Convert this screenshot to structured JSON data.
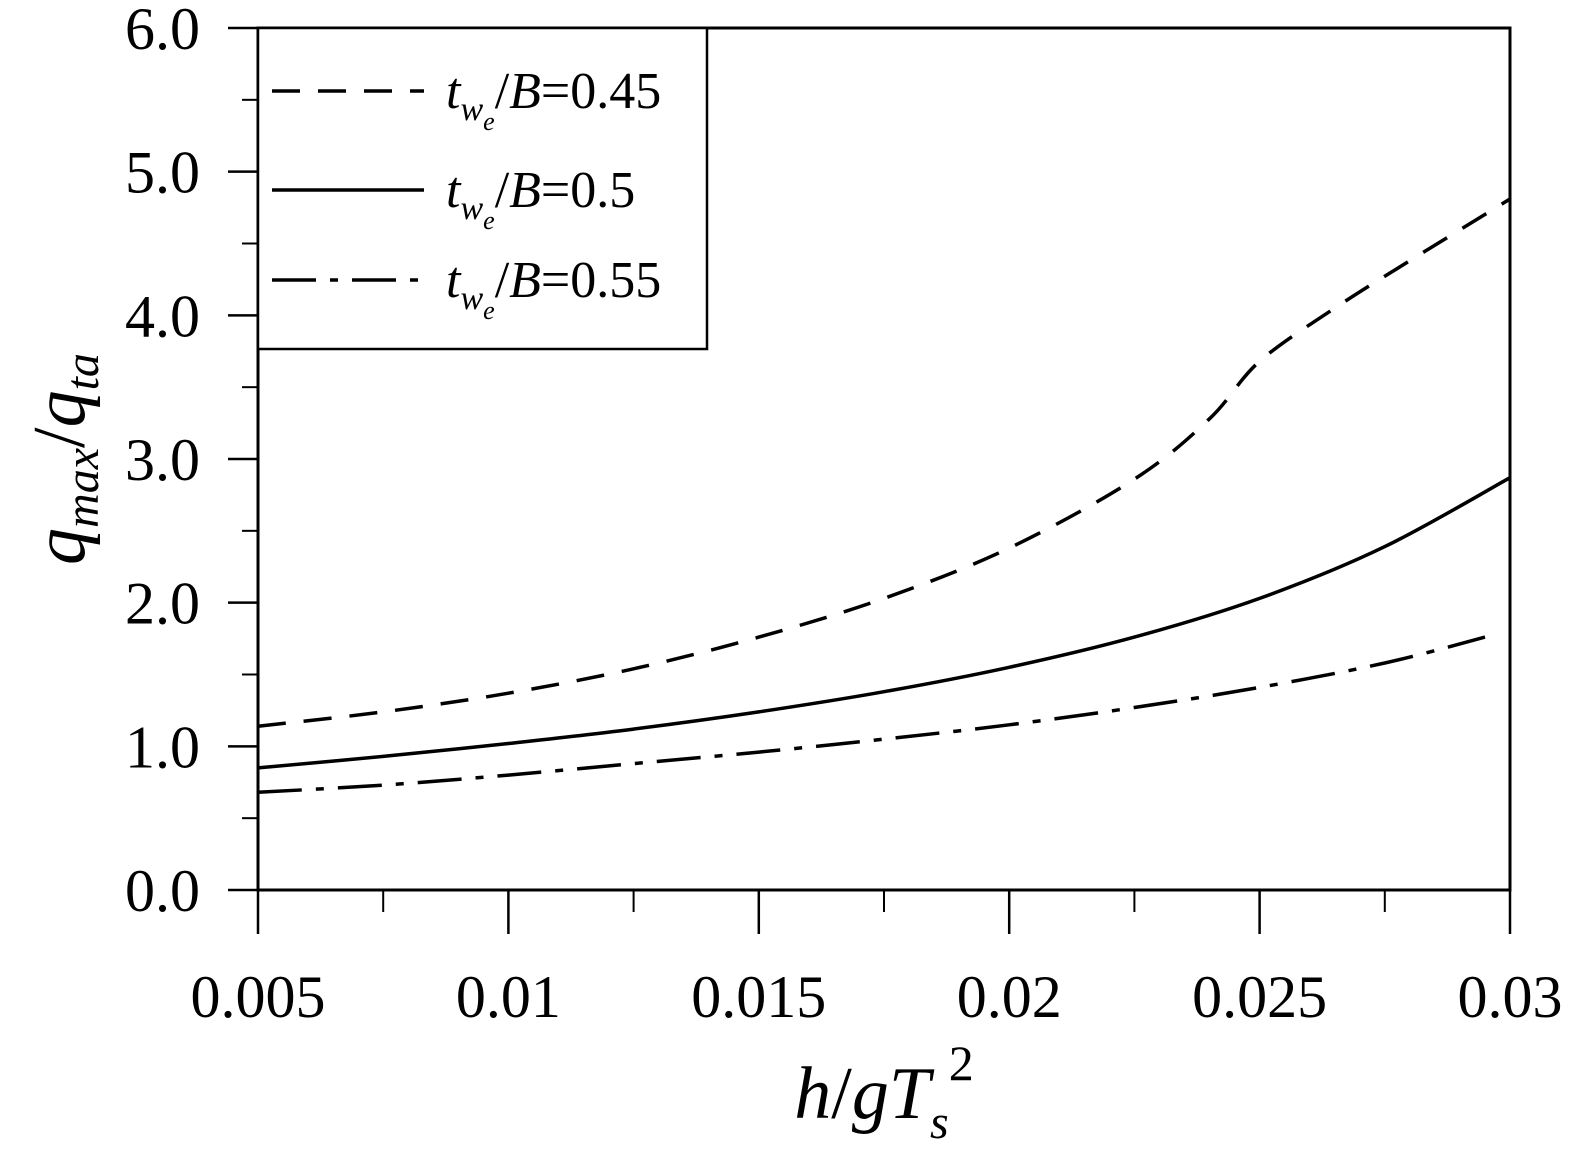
{
  "chart_data": {
    "type": "line",
    "title": "",
    "xlabel": "h/gTs²",
    "ylabel": "qmax/qta",
    "xlim": [
      0.005,
      0.03
    ],
    "ylim": [
      0.0,
      6.0
    ],
    "x_ticks": [
      0.005,
      0.01,
      0.015,
      0.02,
      0.025,
      0.03
    ],
    "x_tick_labels": [
      "0.005",
      "0.01",
      "0.015",
      "0.02",
      "0.025",
      "0.03"
    ],
    "x_minor_ticks": [
      0.0075,
      0.0125,
      0.0175,
      0.0225,
      0.0275
    ],
    "y_ticks": [
      0.0,
      1.0,
      2.0,
      3.0,
      4.0,
      5.0,
      6.0
    ],
    "y_tick_labels": [
      "0.0",
      "1.0",
      "2.0",
      "3.0",
      "4.0",
      "5.0",
      "6.0"
    ],
    "y_minor_ticks": [
      0.5,
      1.5,
      2.5,
      3.5,
      4.5,
      5.5
    ],
    "grid": false,
    "legend_position": "top-left",
    "series": [
      {
        "name": "twe/B=0.45",
        "line_style": "dashed",
        "color": "#000000",
        "x": [
          0.005,
          0.0075,
          0.01,
          0.0125,
          0.015,
          0.0175,
          0.02,
          0.0225,
          0.024,
          0.025,
          0.0265,
          0.028,
          0.03
        ],
        "y": [
          1.14,
          1.24,
          1.37,
          1.54,
          1.76,
          2.03,
          2.38,
          2.86,
          3.28,
          3.68,
          4.05,
          4.38,
          4.81
        ]
      },
      {
        "name": "twe/B=0.5",
        "line_style": "solid",
        "color": "#000000",
        "x": [
          0.005,
          0.0075,
          0.01,
          0.0125,
          0.015,
          0.0175,
          0.02,
          0.0225,
          0.025,
          0.0275,
          0.03
        ],
        "y": [
          0.85,
          0.93,
          1.02,
          1.12,
          1.24,
          1.38,
          1.55,
          1.76,
          2.03,
          2.39,
          2.87
        ]
      },
      {
        "name": "twe/B=0.55",
        "line_style": "dash-dot",
        "color": "#000000",
        "x": [
          0.005,
          0.0075,
          0.01,
          0.0125,
          0.015,
          0.0175,
          0.02,
          0.0225,
          0.025,
          0.0275,
          0.0295
        ],
        "y": [
          0.68,
          0.73,
          0.8,
          0.88,
          0.96,
          1.05,
          1.15,
          1.27,
          1.41,
          1.58,
          1.76
        ]
      }
    ]
  }
}
